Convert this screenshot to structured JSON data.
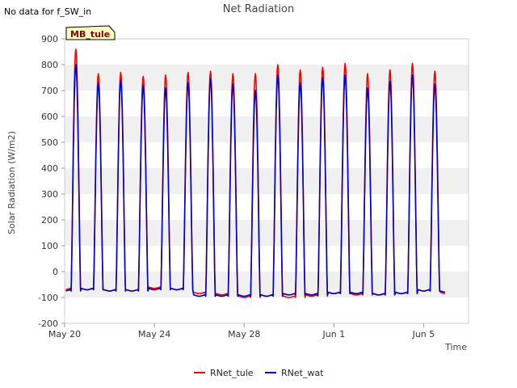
{
  "note": "No data for f_SW_in",
  "site_badge": "MB_tule",
  "colors": {
    "rnet_tule": "#ff0000",
    "rnet_wat": "#0000cc",
    "band": "#f0f0f0",
    "badge_bg": "#ffffc0",
    "badge_text": "#8b0000"
  },
  "chart_data": {
    "type": "line",
    "title": "Net Radiation",
    "xlabel": "Time",
    "ylabel": "Solar Radiation (W/m2)",
    "ylim": [
      -200,
      900
    ],
    "yticks": [
      -200,
      -100,
      0,
      100,
      200,
      300,
      400,
      500,
      600,
      700,
      800,
      900
    ],
    "x_range_days": [
      0,
      18
    ],
    "x_ticks": [
      {
        "day": 0,
        "label": "May 20"
      },
      {
        "day": 4,
        "label": "May 24"
      },
      {
        "day": 8,
        "label": "May 28"
      },
      {
        "day": 12,
        "label": "Jun 1"
      },
      {
        "day": 16,
        "label": "Jun 5"
      }
    ],
    "grid": "horizontal bands",
    "legend_position": "bottom",
    "series": [
      {
        "name": "RNet_tule",
        "color": "#ff0000",
        "daily_peak": [
          860,
          765,
          770,
          755,
          760,
          770,
          775,
          765,
          765,
          800,
          780,
          790,
          805,
          765,
          780,
          805,
          775
        ],
        "night_min": [
          -70,
          -70,
          -75,
          -75,
          -65,
          -70,
          -85,
          -90,
          -100,
          -95,
          -100,
          -95,
          -85,
          -90,
          -90,
          -85,
          -75,
          -85
        ]
      },
      {
        "name": "RNet_wat",
        "color": "#0000cc",
        "daily_peak": [
          800,
          730,
          740,
          720,
          710,
          730,
          745,
          725,
          700,
          760,
          730,
          750,
          760,
          710,
          735,
          760,
          725
        ],
        "night_min": [
          -75,
          -70,
          -75,
          -75,
          -70,
          -70,
          -95,
          -95,
          -95,
          -95,
          -90,
          -90,
          -85,
          -85,
          -90,
          -85,
          -75,
          -80
        ]
      }
    ]
  }
}
